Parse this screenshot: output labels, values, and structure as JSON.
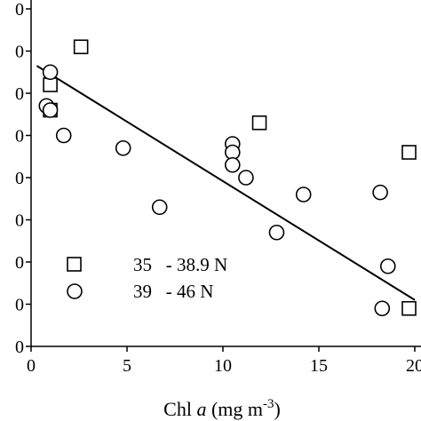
{
  "chart_data": {
    "type": "scatter",
    "x": {
      "label_prefix": "Chl ",
      "label_var": "a",
      "label_unit": " (mg m",
      "label_exp": "-3",
      "label_close": ")",
      "lim": [
        0,
        20
      ],
      "ticks": [
        0,
        5,
        10,
        15,
        20
      ],
      "tick_labels": [
        "0",
        "5",
        "10",
        "15",
        "20"
      ]
    },
    "y": {
      "lim": [
        0,
        8
      ],
      "ticks": [
        0,
        1,
        2,
        3,
        4,
        5,
        6,
        7,
        8
      ],
      "tick_labels": [
        "0",
        "0",
        "0",
        "0",
        "0",
        "0",
        "0",
        "0",
        "0"
      ]
    },
    "series": [
      {
        "name": "35   - 38.9 N",
        "marker": "square",
        "points": [
          [
            2.6,
            7.1
          ],
          [
            1.0,
            6.2
          ],
          [
            1.0,
            5.6
          ],
          [
            11.9,
            5.3
          ],
          [
            19.7,
            4.6
          ],
          [
            19.7,
            0.9
          ]
        ]
      },
      {
        "name": "39   - 46 N",
        "marker": "circle",
        "points": [
          [
            1.0,
            6.5
          ],
          [
            0.8,
            5.7
          ],
          [
            1.0,
            5.6
          ],
          [
            1.7,
            5.0
          ],
          [
            4.8,
            4.7
          ],
          [
            6.7,
            3.3
          ],
          [
            10.5,
            4.8
          ],
          [
            10.5,
            4.6
          ],
          [
            10.5,
            4.3
          ],
          [
            11.2,
            4.0
          ],
          [
            12.8,
            2.7
          ],
          [
            14.2,
            3.6
          ],
          [
            18.2,
            3.65
          ],
          [
            18.6,
            1.9
          ],
          [
            18.3,
            0.9
          ]
        ]
      }
    ],
    "trendline": {
      "x": [
        0.3,
        20
      ],
      "y": [
        6.65,
        1.1
      ]
    },
    "legend_position": "bottom-left",
    "grid": false
  }
}
